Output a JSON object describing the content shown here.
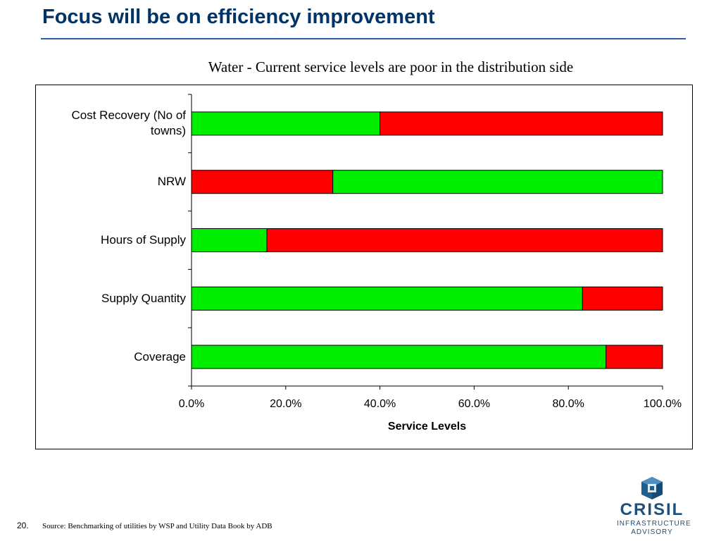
{
  "slide": {
    "title": "Focus will be on efficiency improvement",
    "page_number": "20.",
    "source": "Source: Benchmarking of utilities by WSP and Utility Data Book by ADB"
  },
  "logo": {
    "word": "CRISIL",
    "line1": "INFRASTRUCTURE",
    "line2": "ADVISORY",
    "icon": "crisil-logo-icon"
  },
  "colors": {
    "green": "#00ee00",
    "red": "#ff0000",
    "title": "#003366"
  },
  "chart_data": {
    "type": "bar",
    "orientation": "horizontal",
    "stacked": true,
    "title": "Water - Current service levels are poor in the distribution side",
    "xlabel": "Service Levels",
    "ylabel": "",
    "xlim": [
      0,
      100
    ],
    "x_ticks": [
      "0.0%",
      "20.0%",
      "40.0%",
      "60.0%",
      "80.0%",
      "100.0%"
    ],
    "grid": false,
    "legend": "none",
    "categories": [
      "Cost Recovery (No of towns)",
      "NRW",
      "Hours of Supply",
      "Supply Quantity",
      "Coverage"
    ],
    "segments": [
      [
        {
          "value": 40,
          "color": "green"
        },
        {
          "value": 60,
          "color": "red"
        }
      ],
      [
        {
          "value": 30,
          "color": "red"
        },
        {
          "value": 70,
          "color": "green"
        }
      ],
      [
        {
          "value": 16,
          "color": "green"
        },
        {
          "value": 84,
          "color": "red"
        }
      ],
      [
        {
          "value": 83,
          "color": "green"
        },
        {
          "value": 17,
          "color": "red"
        }
      ],
      [
        {
          "value": 88,
          "color": "green"
        },
        {
          "value": 12,
          "color": "red"
        }
      ]
    ]
  }
}
